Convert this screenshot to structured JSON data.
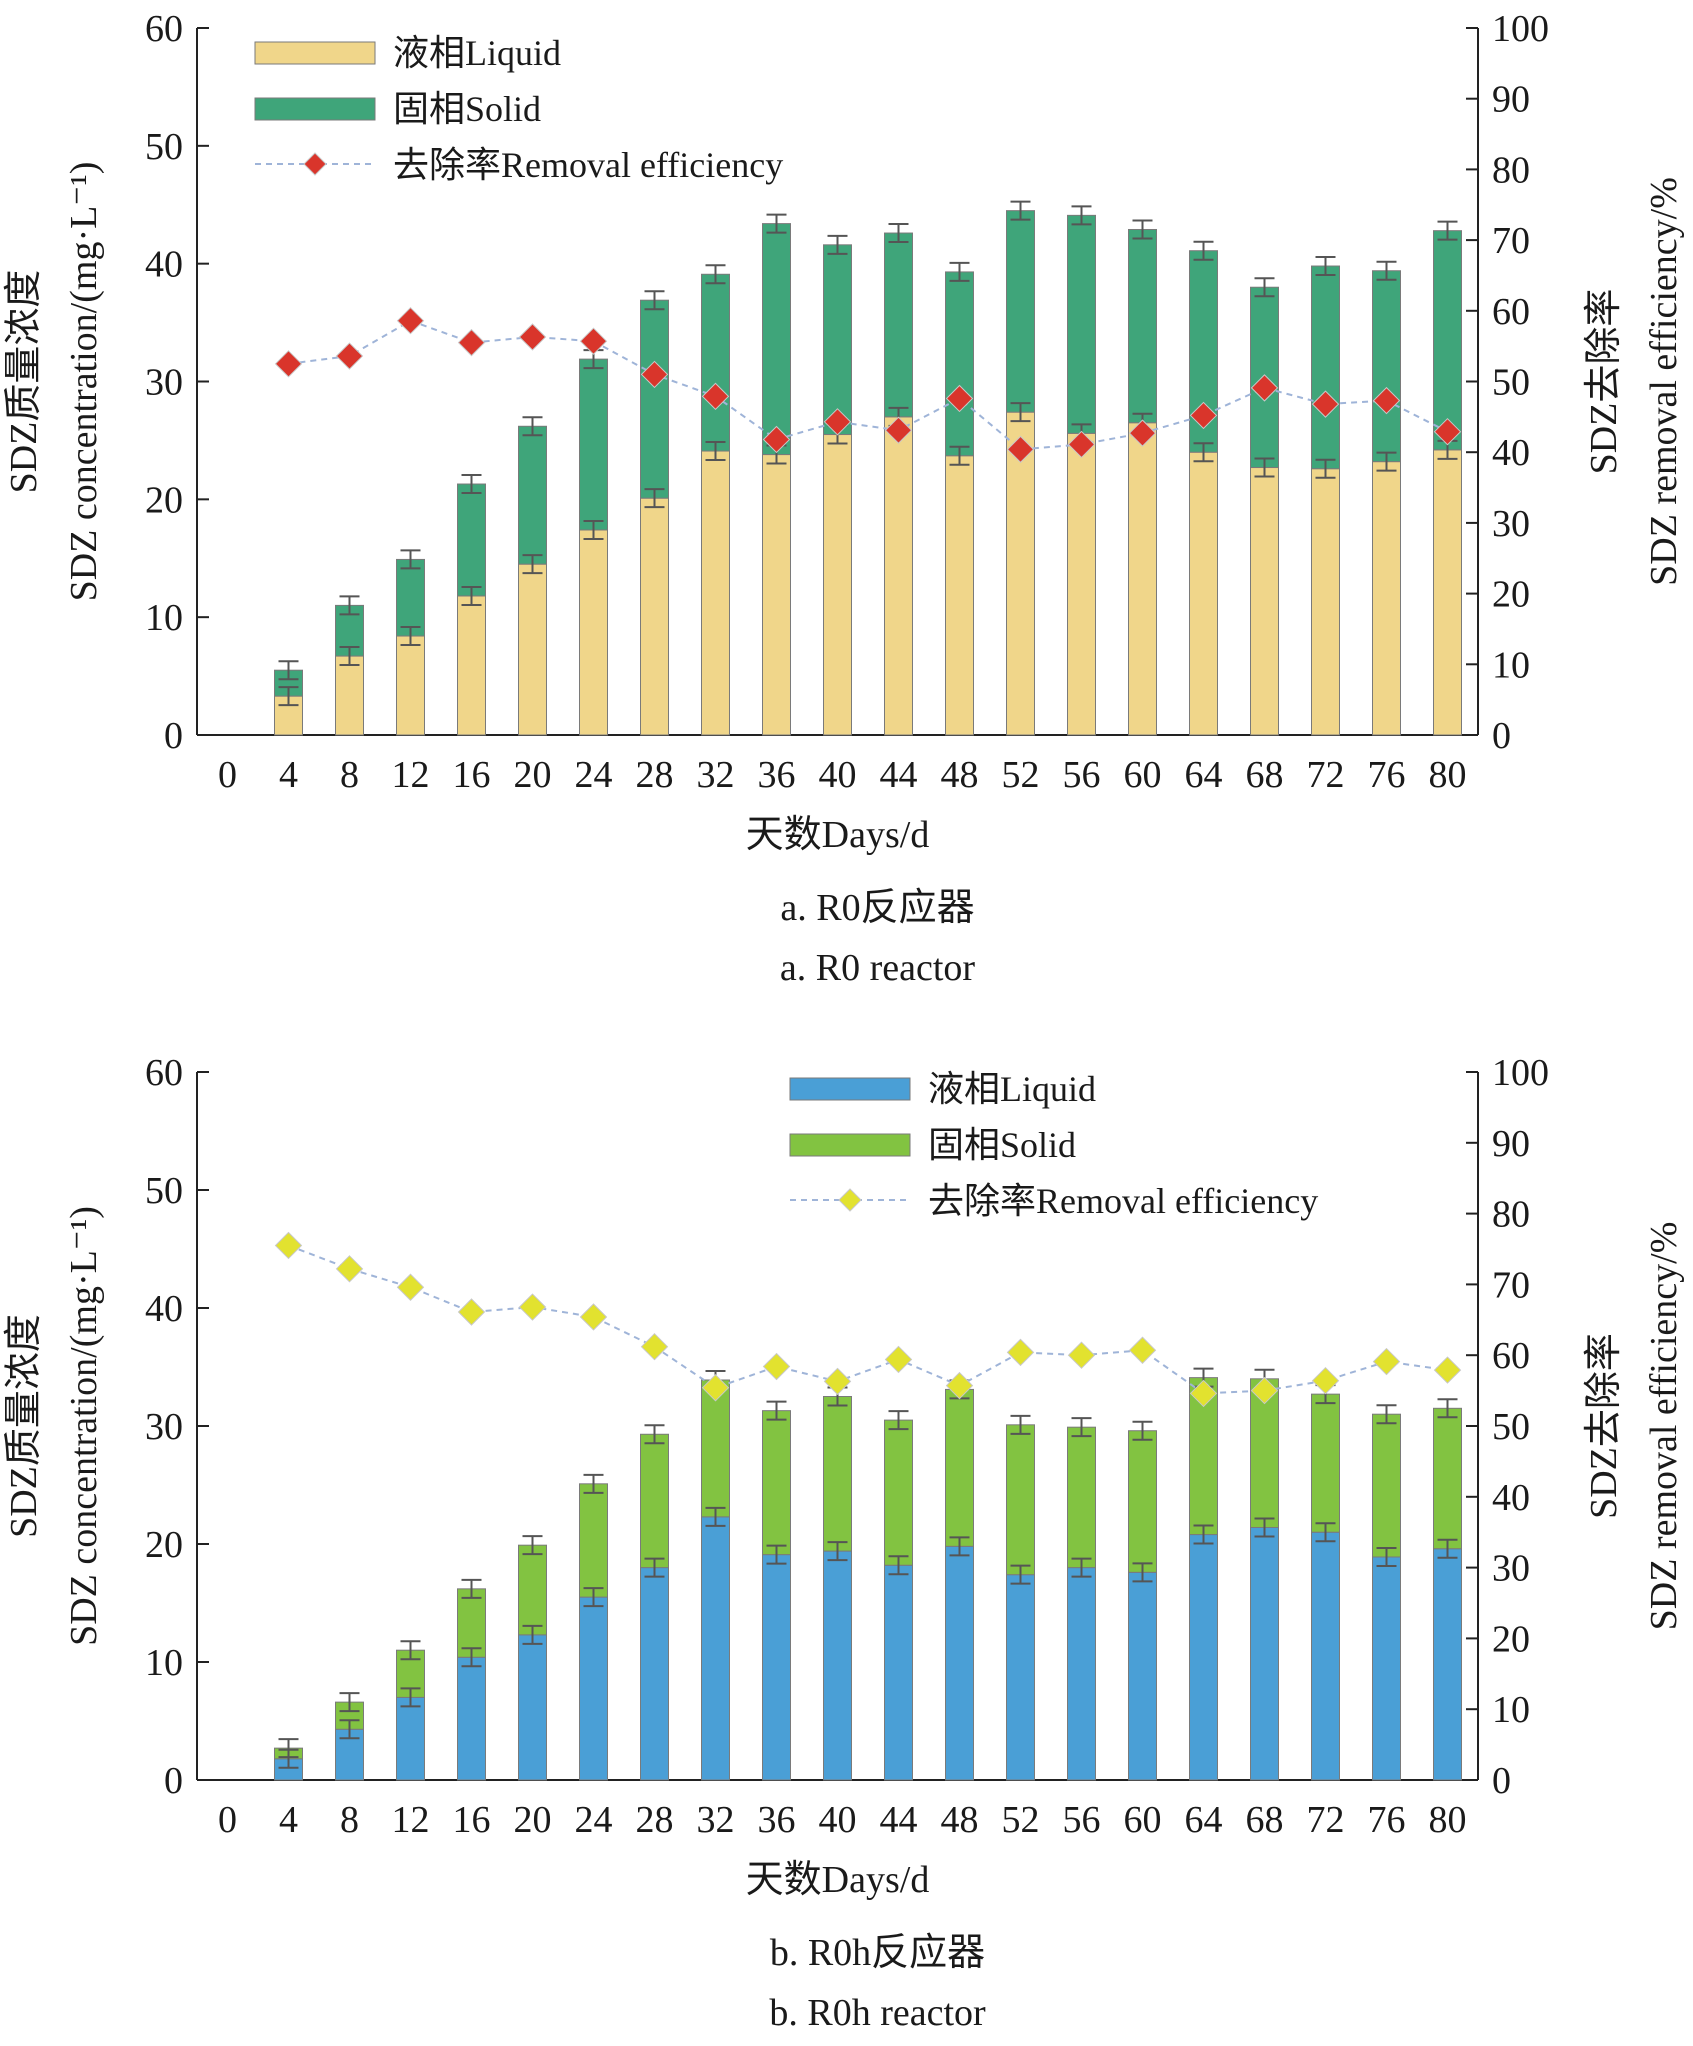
{
  "chart_data": [
    {
      "type": "bar",
      "stacked": true,
      "x": [
        4,
        8,
        12,
        16,
        20,
        24,
        28,
        32,
        36,
        40,
        44,
        48,
        52,
        56,
        60,
        64,
        68,
        72,
        76,
        80
      ],
      "xticks": [
        "0",
        "4",
        "8",
        "12",
        "16",
        "20",
        "24",
        "28",
        "32",
        "36",
        "40",
        "44",
        "48",
        "52",
        "56",
        "60",
        "64",
        "68",
        "72",
        "76",
        "80"
      ],
      "xlabel": "天数Days/d",
      "ylabel_cn": "SDZ质量浓度",
      "ylabel_en": "SDZ concentration/(mg·L⁻¹)",
      "y2label_cn": "SDZ去除率",
      "y2label_en": "SDZ removal efficiency/%",
      "ylim": [
        0,
        60
      ],
      "yticks": [
        "0",
        "10",
        "20",
        "30",
        "40",
        "50",
        "60"
      ],
      "y2lim": [
        0,
        100
      ],
      "y2ticks": [
        "0",
        "10",
        "20",
        "30",
        "40",
        "50",
        "60",
        "70",
        "80",
        "90",
        "100"
      ],
      "legend_position": "top-left",
      "caption_cn": "a. R0反应器",
      "caption_en": "a. R0 reactor",
      "series": [
        {
          "name": "液相Liquid",
          "kind": "bar",
          "color": "#f0d68a",
          "values": [
            3.3,
            6.7,
            8.4,
            11.8,
            14.5,
            17.4,
            20.1,
            24.1,
            23.8,
            25.5,
            27.0,
            23.7,
            27.4,
            25.6,
            26.5,
            24.0,
            22.7,
            22.6,
            23.2,
            24.2
          ]
        },
        {
          "name": "固相Solid",
          "kind": "bar",
          "color": "#3fa57a",
          "values": [
            2.2,
            4.3,
            6.5,
            9.5,
            11.7,
            14.5,
            16.8,
            15.0,
            19.6,
            16.1,
            15.6,
            15.6,
            17.1,
            18.5,
            16.4,
            17.1,
            15.3,
            17.2,
            16.2,
            18.6
          ]
        },
        {
          "name": "去除率Removal efficiency",
          "kind": "line",
          "axis": "right",
          "color": "#d9352b",
          "values": [
            52.5,
            53.6,
            58.6,
            55.5,
            56.3,
            55.7,
            51.0,
            47.9,
            41.8,
            44.3,
            43.1,
            47.6,
            40.4,
            41.1,
            42.7,
            45.2,
            49.1,
            46.8,
            47.3,
            42.9
          ]
        }
      ]
    },
    {
      "type": "bar",
      "stacked": true,
      "x": [
        4,
        8,
        12,
        16,
        20,
        24,
        28,
        32,
        36,
        40,
        44,
        48,
        52,
        56,
        60,
        64,
        68,
        72,
        76,
        80
      ],
      "xticks": [
        "0",
        "4",
        "8",
        "12",
        "16",
        "20",
        "24",
        "28",
        "32",
        "36",
        "40",
        "44",
        "48",
        "52",
        "56",
        "60",
        "64",
        "68",
        "72",
        "76",
        "80"
      ],
      "xlabel": "天数Days/d",
      "ylabel_cn": "SDZ质量浓度",
      "ylabel_en": "SDZ concentration/(mg·L⁻¹)",
      "y2label_cn": "SDZ去除率",
      "y2label_en": "SDZ removal efficiency/%",
      "ylim": [
        0,
        60
      ],
      "yticks": [
        "0",
        "10",
        "20",
        "30",
        "40",
        "50",
        "60"
      ],
      "y2lim": [
        0,
        100
      ],
      "y2ticks": [
        "0",
        "10",
        "20",
        "30",
        "40",
        "50",
        "60",
        "70",
        "80",
        "90",
        "100"
      ],
      "legend_position": "top-right",
      "caption_cn": "b. R0h反应器",
      "caption_en": "b. R0h reactor",
      "series": [
        {
          "name": "液相Liquid",
          "kind": "bar",
          "color": "#4a9fd6",
          "values": [
            1.8,
            4.3,
            7.0,
            10.4,
            12.3,
            15.5,
            18.0,
            22.3,
            19.1,
            19.4,
            18.2,
            19.8,
            17.4,
            18.0,
            17.6,
            20.8,
            21.4,
            21.0,
            18.9,
            19.6
          ]
        },
        {
          "name": "固相Solid",
          "kind": "bar",
          "color": "#82c341",
          "values": [
            0.9,
            2.3,
            4.0,
            5.8,
            7.6,
            9.6,
            11.3,
            11.6,
            12.2,
            13.1,
            12.3,
            13.3,
            12.7,
            11.9,
            12.0,
            13.3,
            12.6,
            11.7,
            12.1,
            11.9
          ]
        },
        {
          "name": "去除率Removal efficiency",
          "kind": "line",
          "axis": "right",
          "color": "#e2e22f",
          "values": [
            75.5,
            72.2,
            69.6,
            66.1,
            66.8,
            65.4,
            61.2,
            55.4,
            58.4,
            56.3,
            59.4,
            55.7,
            60.4,
            60.0,
            60.7,
            54.6,
            55.0,
            56.4,
            59.1,
            57.9
          ]
        }
      ]
    }
  ]
}
